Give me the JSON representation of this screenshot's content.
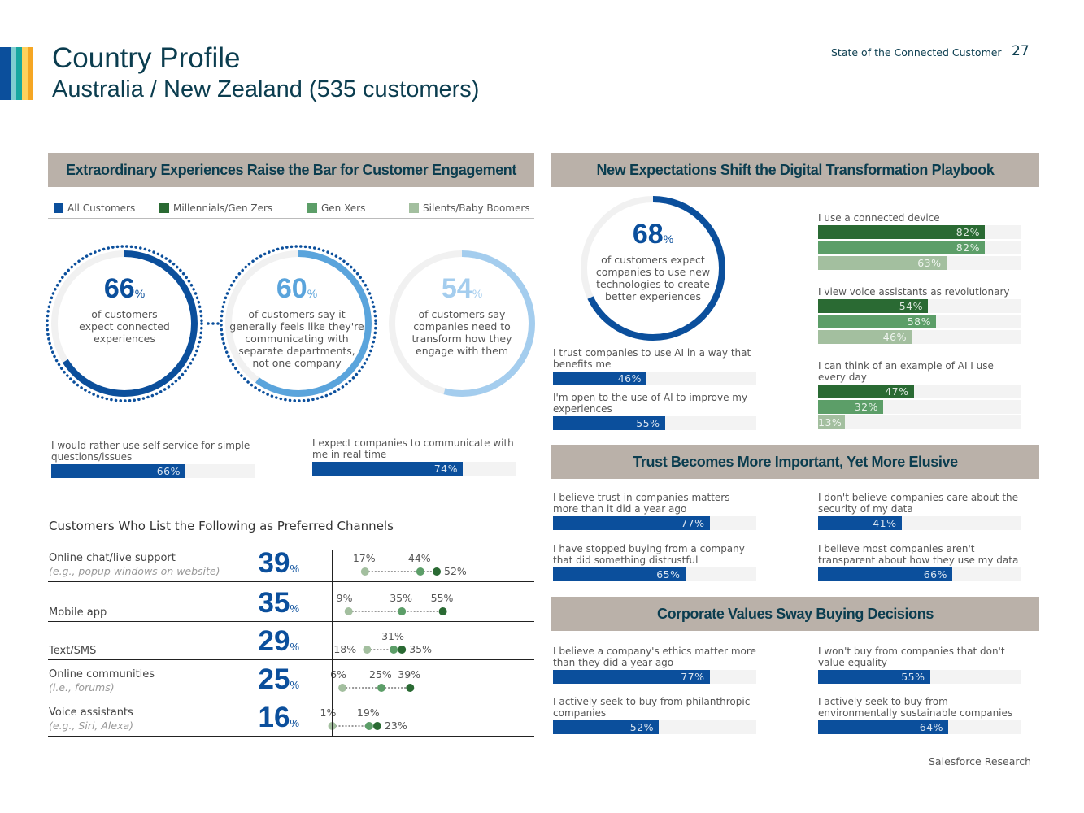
{
  "header": {
    "title": "Country Profile",
    "subtitle": "Australia / New Zealand (535 customers)",
    "report": "State of the Connected Customer",
    "page": "27",
    "stripe_colors": [
      "#0b4f9c",
      "#7fcdd0",
      "#17a7a0",
      "#ffd15c",
      "#f5a623"
    ]
  },
  "footer": {
    "source": "Salesforce Research"
  },
  "colors": {
    "navy": "#0b4f9c",
    "mid_blue": "#5aa4dc",
    "light_blue": "#a4cdee",
    "dark_green": "#2a6a33",
    "mid_green": "#5c9e68",
    "light_green": "#a3bf9f",
    "track": "#f3f3f3",
    "header_bg": "#bab1a9"
  },
  "section1": {
    "title": "Extraordinary Experiences Raise the Bar for Customer Engagement",
    "legend": [
      "All Customers",
      "Millennials/Gen Zers",
      "Gen Xers",
      "Silents/Baby Boomers"
    ],
    "donuts": [
      {
        "value": 66,
        "number": "66",
        "pct": "%",
        "text": [
          "of customers",
          "expect connected",
          "experiences"
        ]
      },
      {
        "value": 60,
        "number": "60",
        "pct": "%",
        "text": [
          "of customers say it",
          "generally feels like they're",
          "communicating with",
          "separate departments,",
          "not one company"
        ]
      },
      {
        "value": 54,
        "number": "54",
        "pct": "%",
        "text": [
          "of customers say",
          "companies need to",
          "transform how they",
          "engage with them"
        ]
      }
    ],
    "bars": [
      {
        "label": "I would rather use self-service for simple questions/issues",
        "value": 66,
        "text": "66%"
      },
      {
        "label": "I expect companies to communicate with me in real time",
        "value": 74,
        "text": "74%"
      }
    ]
  },
  "channels": {
    "title": "Customers Who List the Following as Preferred Channels",
    "rows": [
      {
        "label": "Online chat/live support",
        "sub": "(e.g., popup windows on website)",
        "value": "39",
        "pct": "%",
        "silents": 17,
        "genx": 44,
        "millennials": 52
      },
      {
        "label": "Mobile app",
        "sub": "",
        "value": "35",
        "pct": "%",
        "silents": 9,
        "genx": 35,
        "millennials": 55
      },
      {
        "label": "Text/SMS",
        "sub": "",
        "value": "29",
        "pct": "%",
        "silents": 18,
        "genx": 31,
        "millennials": 35
      },
      {
        "label": "Online communities",
        "sub": "(i.e., forums)",
        "value": "25",
        "pct": "%",
        "silents": 6,
        "genx": 25,
        "millennials": 39
      },
      {
        "label": "Voice assistants",
        "sub": "(e.g., Siri, Alexa)",
        "value": "16",
        "pct": "%",
        "silents": 1,
        "genx": 19,
        "millennials": 23
      }
    ]
  },
  "section2": {
    "title": "New Expectations Shift the Digital Transformation Playbook",
    "donut": {
      "value": 68,
      "number": "68",
      "pct": "%",
      "text": [
        "of customers expect",
        "companies to use new",
        "technologies to create",
        "better experiences"
      ]
    },
    "ai_bars": [
      {
        "label": "I trust companies to use AI in a way that benefits me",
        "value": 46,
        "text": "46%"
      },
      {
        "label": "I'm open to the use of AI to improve my experiences",
        "value": 55,
        "text": "55%"
      }
    ],
    "generation_bars": [
      {
        "label": "I use a connected device",
        "values": [
          82,
          82,
          63
        ],
        "texts": [
          "82%",
          "82%",
          "63%"
        ]
      },
      {
        "label": "I view voice assistants as revolutionary",
        "values": [
          54,
          58,
          46
        ],
        "texts": [
          "54%",
          "58%",
          "46%"
        ]
      },
      {
        "label": "I can think of an example of AI I use every day",
        "values": [
          47,
          32,
          13
        ],
        "texts": [
          "47%",
          "32%",
          "13%"
        ]
      }
    ]
  },
  "section3": {
    "title": "Trust Becomes More Important, Yet More Elusive",
    "bars": [
      {
        "label": "I believe trust in companies matters more than it did a year ago",
        "value": 77,
        "text": "77%"
      },
      {
        "label": "I don't believe companies care about the security of my data",
        "value": 41,
        "text": "41%"
      },
      {
        "label": "I have stopped buying from a company that did something distrustful",
        "value": 65,
        "text": "65%"
      },
      {
        "label": "I believe most companies aren't transparent about how they use my data",
        "value": 66,
        "text": "66%"
      }
    ]
  },
  "section4": {
    "title": "Corporate Values Sway Buying Decisions",
    "bars": [
      {
        "label": "I believe a company's ethics matter more than they did a year ago",
        "value": 77,
        "text": "77%"
      },
      {
        "label": "I won't buy from companies that don't value equality",
        "value": 55,
        "text": "55%"
      },
      {
        "label": "I actively seek to buy from philanthropic companies",
        "value": 52,
        "text": "52%"
      },
      {
        "label": "I actively seek to buy from environmentally sustainable companies",
        "value": 64,
        "text": "64%"
      }
    ]
  }
}
